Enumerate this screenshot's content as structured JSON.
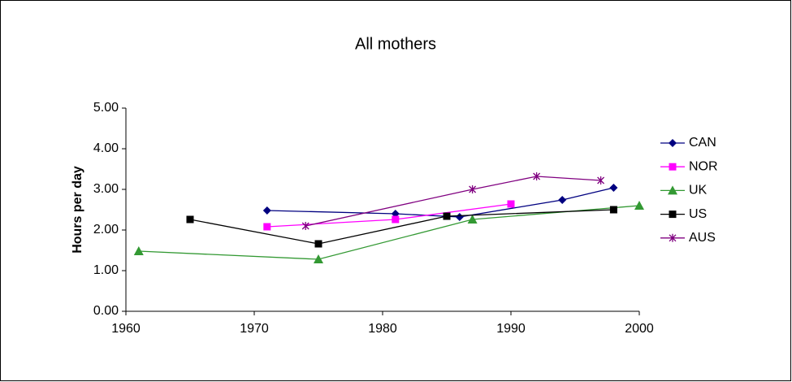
{
  "chart_data": {
    "type": "line",
    "title": "All mothers",
    "y_label": "Hours per day",
    "xlim": [
      1960,
      2000
    ],
    "xticks": [
      1960,
      1970,
      1980,
      1990,
      2000
    ],
    "ylim": [
      0,
      5
    ],
    "yticks": [
      {
        "value": 0,
        "label": "0.00"
      },
      {
        "value": 1,
        "label": "1.00"
      },
      {
        "value": 2,
        "label": "2.00"
      },
      {
        "value": 3,
        "label": "3.00"
      },
      {
        "value": 4,
        "label": "4.00"
      },
      {
        "value": 5,
        "label": "5.00"
      }
    ],
    "grid": false,
    "legend": "right",
    "series": [
      {
        "name": "CAN",
        "color": "#000080",
        "marker": "diamond",
        "x": [
          1971,
          1981,
          1986,
          1994,
          1998
        ],
        "values": [
          2.48,
          2.4,
          2.32,
          2.74,
          3.04
        ]
      },
      {
        "name": "NOR",
        "color": "#ff00ff",
        "marker": "square",
        "x": [
          1971,
          1981,
          1990
        ],
        "values": [
          2.08,
          2.26,
          2.64
        ]
      },
      {
        "name": "UK",
        "color": "#339933",
        "marker": "triangle",
        "x": [
          1961,
          1975,
          1987,
          2000
        ],
        "values": [
          1.48,
          1.28,
          2.26,
          2.6
        ]
      },
      {
        "name": "US",
        "color": "#000000",
        "marker": "square",
        "x": [
          1965,
          1975,
          1985,
          1998
        ],
        "values": [
          2.26,
          1.66,
          2.34,
          2.5
        ]
      },
      {
        "name": "AUS",
        "color": "#800080",
        "marker": "star",
        "x": [
          1974,
          1987,
          1992,
          1997
        ],
        "values": [
          2.1,
          3.0,
          3.32,
          3.22
        ]
      }
    ]
  }
}
